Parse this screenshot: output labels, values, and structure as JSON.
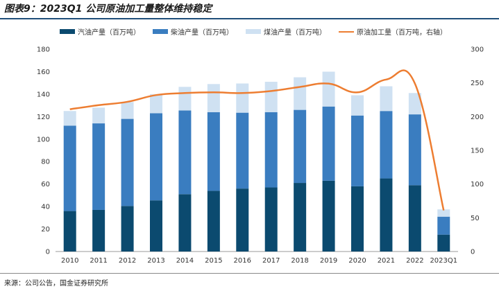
{
  "title": "图表9：2023Q1 公司原油加工量整体维持稳定",
  "source": "来源：公司公告，国金证券研究所",
  "colors": {
    "gasoline": "#0b4a6f",
    "diesel": "#3a7dc0",
    "kerosene": "#cfe1f2",
    "crude": "#ed7d31"
  },
  "chart_data": {
    "type": "bar",
    "stacked": true,
    "categories": [
      "2010",
      "2011",
      "2012",
      "2013",
      "2014",
      "2015",
      "2016",
      "2017",
      "2018",
      "2019",
      "2020",
      "2021",
      "2022",
      "2023Q1"
    ],
    "series": [
      {
        "name": "汽油产量（百万吨）",
        "type": "bar",
        "axis": "left",
        "values": [
          36,
          37,
          40.5,
          45.5,
          51,
          54,
          56,
          57,
          61,
          63,
          58,
          65,
          59,
          15
        ]
      },
      {
        "name": "柴油产量（百万吨）",
        "type": "bar",
        "axis": "left",
        "values": [
          76,
          77,
          77.5,
          77.5,
          74.5,
          70,
          67.5,
          67,
          65,
          66,
          63,
          60,
          63,
          16
        ]
      },
      {
        "name": "煤油产量（百万吨）",
        "type": "bar",
        "axis": "left",
        "values": [
          13,
          14,
          15,
          17,
          21,
          25,
          26,
          27,
          29,
          31,
          18,
          22,
          19,
          6.5
        ]
      },
      {
        "name": "原油加工量（百万吨，右轴）",
        "type": "line",
        "axis": "right",
        "values": [
          211,
          217,
          222,
          232,
          235,
          236,
          235,
          238,
          244,
          249,
          236,
          255,
          249,
          61
        ]
      }
    ],
    "y_left": {
      "min": 0,
      "max": 180,
      "ticks": [
        "0",
        "20",
        "40",
        "60",
        "80",
        "100",
        "120",
        "140",
        "160",
        "180"
      ]
    },
    "y_right": {
      "min": 0,
      "max": 300,
      "ticks": [
        "0",
        "50",
        "100",
        "150",
        "200",
        "250",
        "300"
      ]
    },
    "legend_position": "top",
    "grid": false
  }
}
